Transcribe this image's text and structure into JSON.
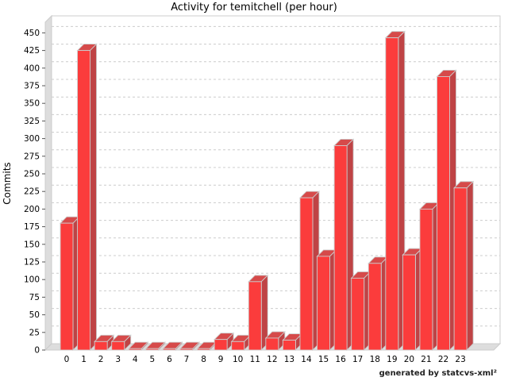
{
  "title": "Activity for temitchell (per hour)",
  "footer": "generated by statcvs-xml²",
  "chart_data": {
    "type": "bar",
    "title": "Activity for temitchell (per hour)",
    "xlabel": "",
    "ylabel": "Commits",
    "categories": [
      "0",
      "1",
      "2",
      "3",
      "4",
      "5",
      "6",
      "7",
      "8",
      "9",
      "10",
      "11",
      "12",
      "13",
      "14",
      "15",
      "16",
      "17",
      "18",
      "19",
      "20",
      "21",
      "22",
      "23"
    ],
    "values": [
      180,
      425,
      12,
      12,
      2,
      2,
      2,
      2,
      2,
      15,
      12,
      97,
      17,
      14,
      216,
      133,
      290,
      102,
      123,
      443,
      135,
      200,
      388,
      230
    ],
    "ylim": [
      0,
      465
    ],
    "ytick_step": 25,
    "ytick_max": 450,
    "grid": true,
    "legend": "none",
    "effect_3d": true,
    "colors": {
      "bar_front": "#fb3c3c",
      "bar_top": "#d64a4a",
      "bar_side": "#bf4345",
      "bar_outline": "#cccccc",
      "wall": "#dddddd",
      "plot_border": "#cccccc",
      "gridline": "#cccccc",
      "tick": "#555555",
      "text": "#000000",
      "background": "#ffffff"
    }
  }
}
